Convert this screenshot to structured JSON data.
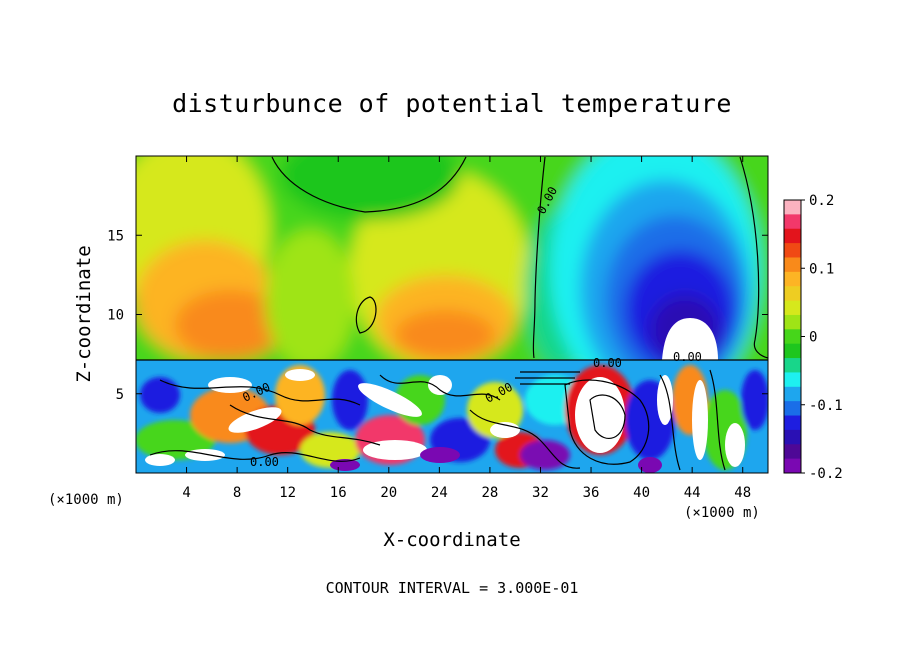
{
  "chart_data": {
    "type": "heatmap",
    "title": "disturbunce of potential temperature",
    "xlabel": "X-coordinate",
    "ylabel": "Z-coordinate",
    "x_unit": "(×1000 m)",
    "y_unit": "(×1000 m)",
    "xlim": [
      0,
      50
    ],
    "ylim": [
      0,
      20
    ],
    "x_ticks": [
      4,
      8,
      12,
      16,
      20,
      24,
      28,
      32,
      36,
      40,
      44,
      48
    ],
    "y_ticks": [
      5,
      10,
      15
    ],
    "colorbar": {
      "range": [
        -0.2,
        0.2
      ],
      "tick_values": [
        0.2,
        0.1,
        0,
        -0.1,
        -0.2
      ],
      "tick_labels": [
        "0.2",
        "0.1",
        "0",
        "-0.1",
        "-0.2"
      ],
      "colors": [
        "#fbb2c0",
        "#f2386a",
        "#e3141c",
        "#f04a14",
        "#f98a1a",
        "#fdb424",
        "#eecd22",
        "#d6e81c",
        "#9fe416",
        "#46d61a",
        "#1ec61e",
        "#18d68a",
        "#1ef0f0",
        "#1ea6ee",
        "#1a6ee8",
        "#1e1ee0",
        "#2a10b4",
        "#4e0896",
        "#7a08b2"
      ]
    },
    "contour_labels": [
      "0.00",
      "0.00",
      "0.00",
      "0.00",
      "0.00",
      "0.00"
    ],
    "footer": "CONTOUR INTERVAL = 3.000E-01"
  }
}
